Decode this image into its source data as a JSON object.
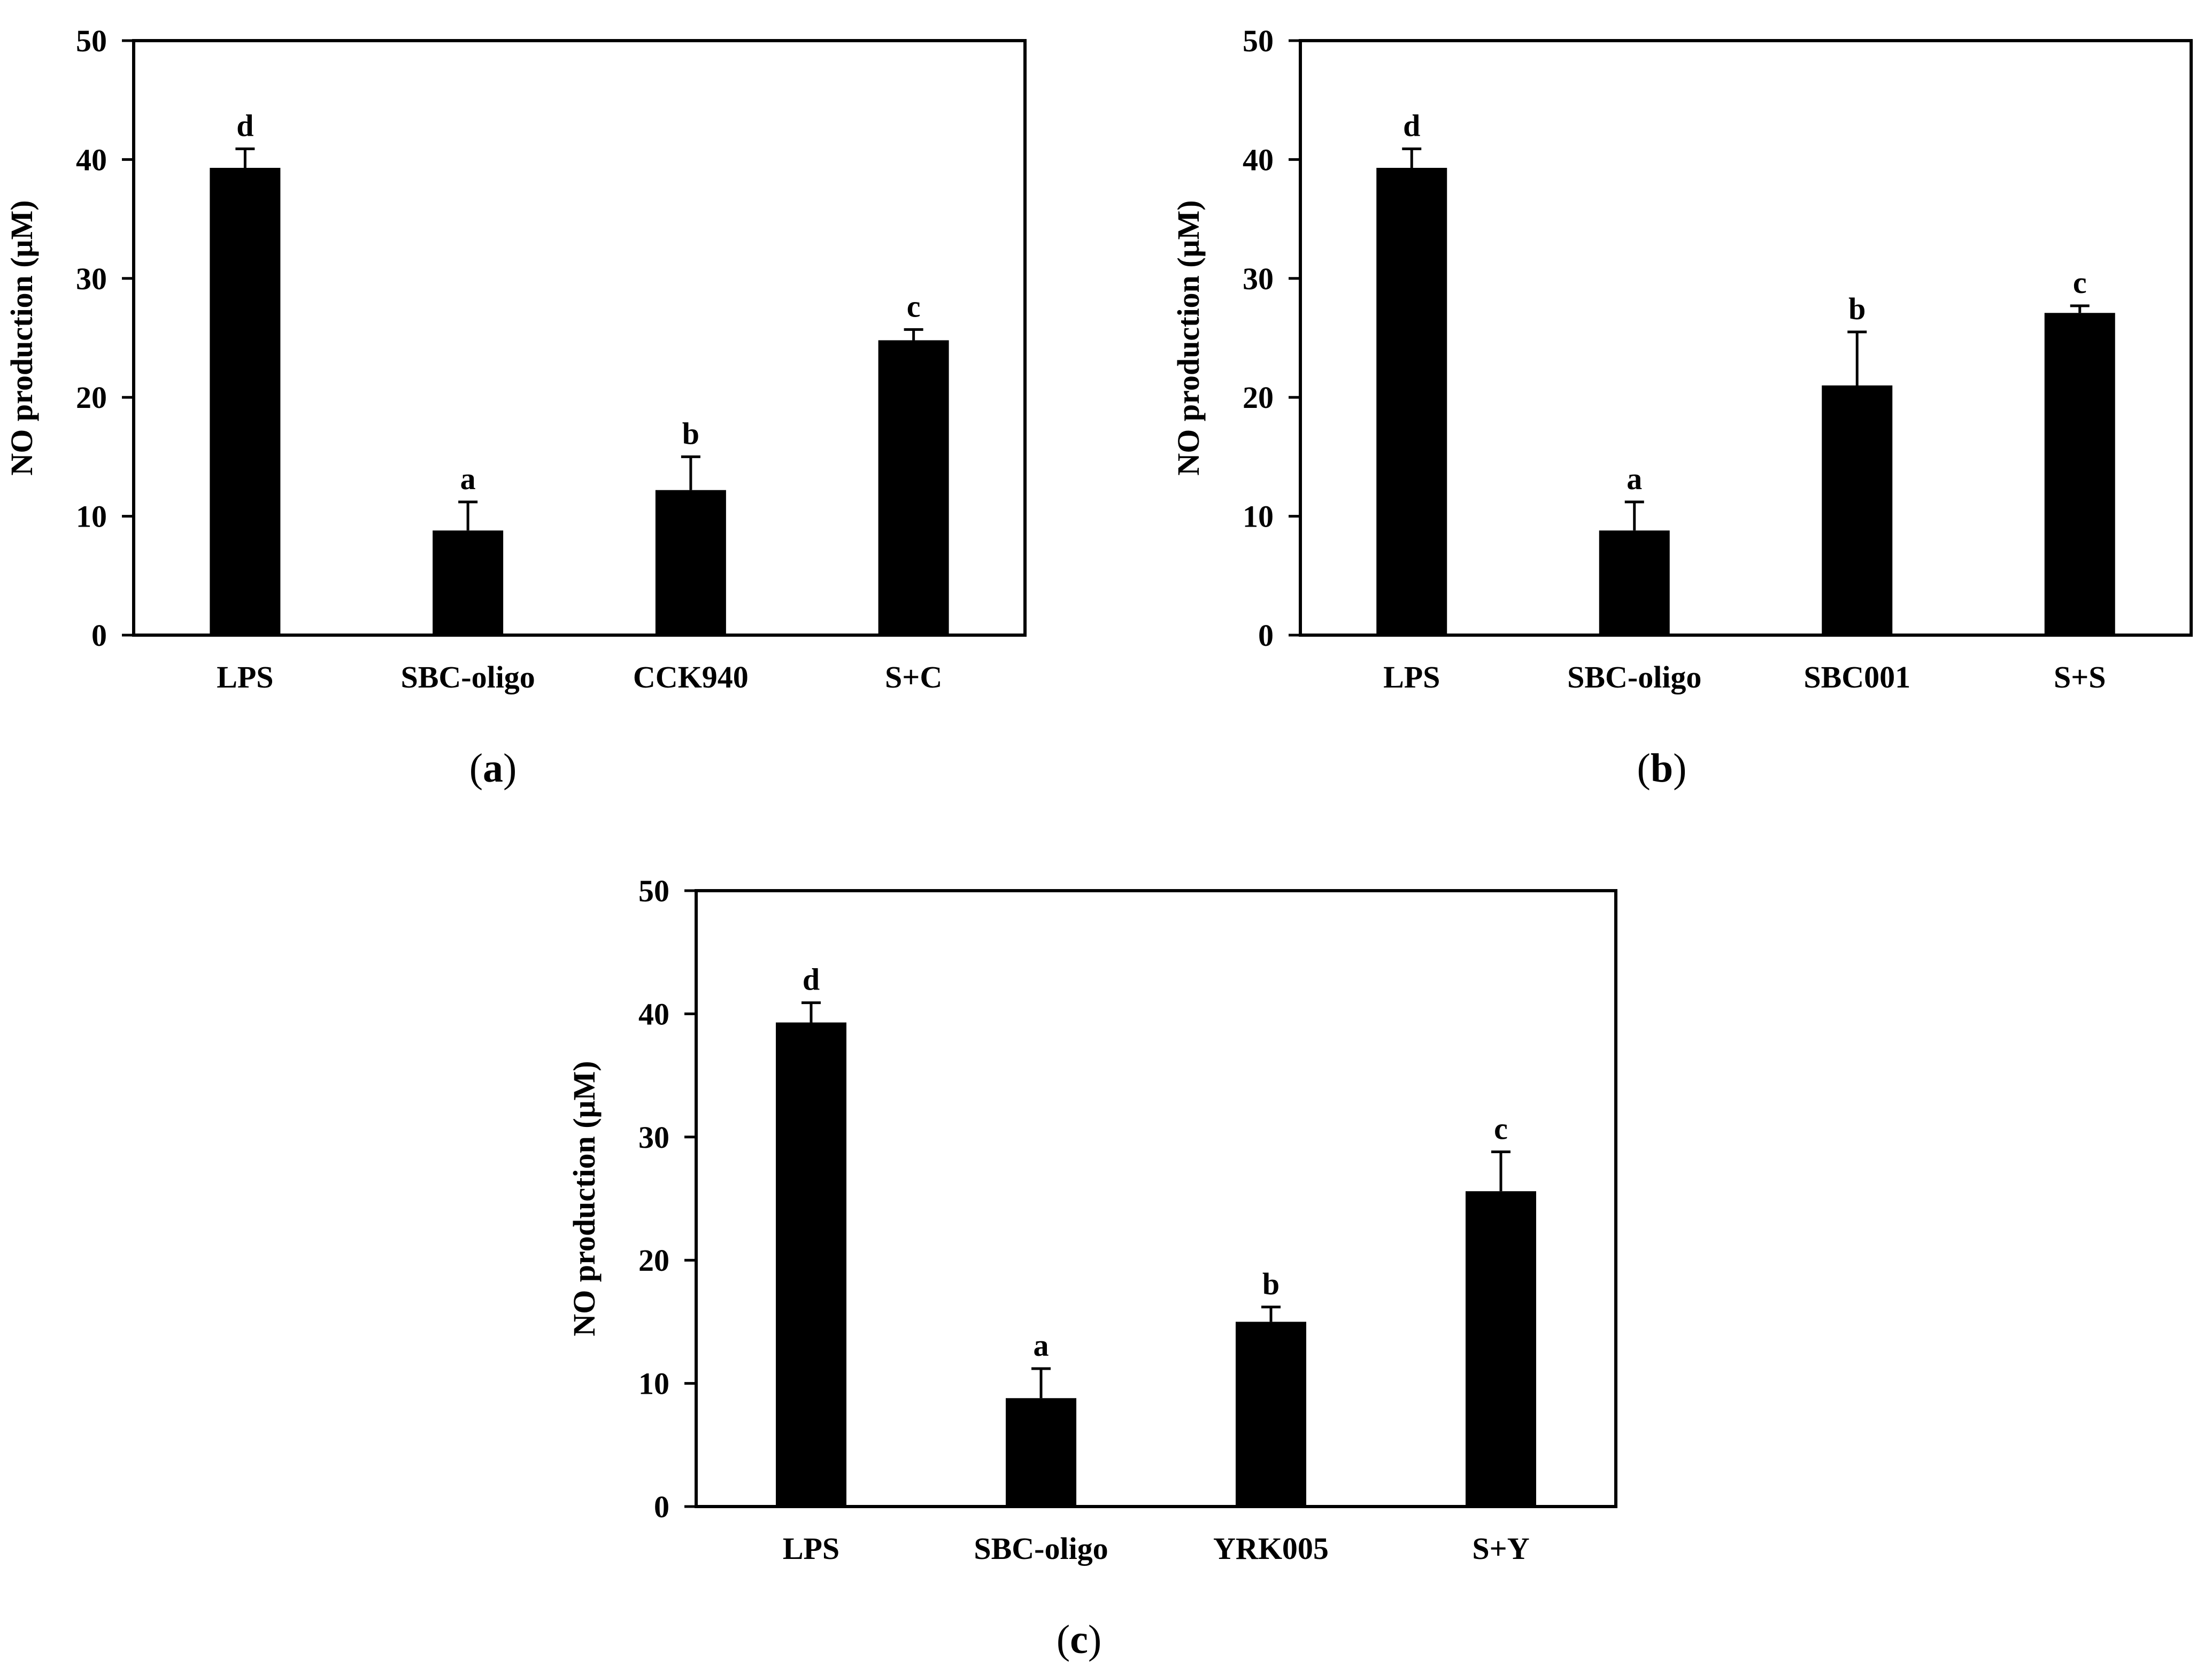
{
  "chart_data": [
    {
      "type": "bar",
      "panel_label": "a",
      "ylabel": "NO production (μM)",
      "ylim": [
        0,
        50
      ],
      "yticks": [
        0,
        10,
        20,
        30,
        40,
        50
      ],
      "ytick_labels": [
        "0",
        "10",
        "20",
        "30",
        "40",
        "50"
      ],
      "categories": [
        "LPS",
        "SBC-oligo",
        "CCK940",
        "S+C"
      ],
      "values": [
        39.3,
        8.8,
        12.2,
        24.8
      ],
      "errors": [
        1.6,
        2.4,
        2.8,
        0.9
      ],
      "significance": [
        "d",
        "a",
        "b",
        "c"
      ],
      "color": "#000000"
    },
    {
      "type": "bar",
      "panel_label": "b",
      "ylabel": "NO production (μM)",
      "ylim": [
        0,
        50
      ],
      "yticks": [
        0,
        10,
        20,
        30,
        40,
        50
      ],
      "ytick_labels": [
        "0",
        "10",
        "20",
        "30",
        "40",
        "50"
      ],
      "categories": [
        "LPS",
        "SBC-oligo",
        "SBC001",
        "S+S"
      ],
      "values": [
        39.3,
        8.8,
        21.0,
        27.1
      ],
      "errors": [
        1.6,
        2.4,
        4.5,
        0.6
      ],
      "significance": [
        "d",
        "a",
        "b",
        "c"
      ],
      "color": "#000000"
    },
    {
      "type": "bar",
      "panel_label": "c",
      "ylabel": "NO production (μM)",
      "ylim": [
        0,
        50
      ],
      "yticks": [
        0,
        10,
        20,
        30,
        40,
        50
      ],
      "ytick_labels": [
        "0",
        "10",
        "20",
        "30",
        "40",
        "50"
      ],
      "categories": [
        "LPS",
        "SBC-oligo",
        "YRK005",
        "S+Y"
      ],
      "values": [
        39.3,
        8.8,
        15.0,
        25.6
      ],
      "errors": [
        1.6,
        2.4,
        1.2,
        3.2
      ],
      "significance": [
        "d",
        "a",
        "b",
        "c"
      ],
      "color": "#000000"
    }
  ]
}
